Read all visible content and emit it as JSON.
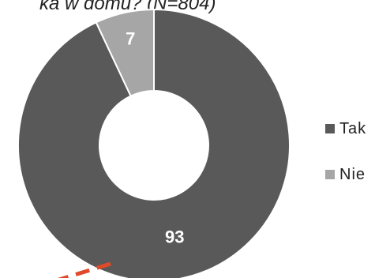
{
  "chart_data": {
    "type": "pie",
    "title": "ka w domu? (N=804)",
    "categories": [
      "Tak",
      "Nie"
    ],
    "values": [
      93,
      7
    ],
    "colors": [
      "#595959",
      "#a6a6a6"
    ],
    "legend_position": "right",
    "annotation": "red dashed line (partially visible) at bottom"
  }
}
